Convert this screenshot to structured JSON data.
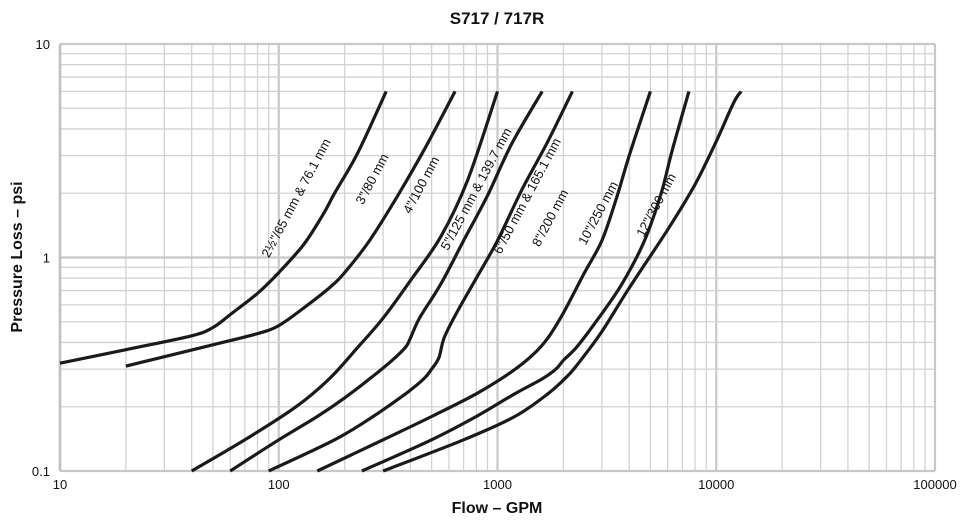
{
  "chart_data": {
    "type": "line",
    "title": "S717 / 717R",
    "xlabel": "Flow – GPM",
    "ylabel": "Pressure Loss – psi",
    "xscale": "log",
    "yscale": "log",
    "xlim": [
      10,
      100000
    ],
    "ylim": [
      0.1,
      10
    ],
    "grid": true,
    "legend": "none",
    "x_ticks": [
      "10",
      "100",
      "1000",
      "10000",
      "100000"
    ],
    "y_ticks": [
      "0.1",
      "1",
      "10"
    ],
    "series": [
      {
        "name": "2½\"/65 mm & 76.1 mm",
        "points": [
          [
            10,
            0.32
          ],
          [
            20,
            0.37
          ],
          [
            40,
            0.43
          ],
          [
            50,
            0.47
          ],
          [
            60,
            0.54
          ],
          [
            80,
            0.68
          ],
          [
            100,
            0.85
          ],
          [
            130,
            1.15
          ],
          [
            160,
            1.6
          ],
          [
            180,
            2.0
          ],
          [
            230,
            3.1
          ],
          [
            310,
            6.0
          ]
        ]
      },
      {
        "name": "3\"/80 mm",
        "points": [
          [
            20,
            0.31
          ],
          [
            50,
            0.39
          ],
          [
            80,
            0.44
          ],
          [
            100,
            0.48
          ],
          [
            130,
            0.58
          ],
          [
            170,
            0.72
          ],
          [
            200,
            0.85
          ],
          [
            260,
            1.2
          ],
          [
            350,
            1.95
          ],
          [
            470,
            3.3
          ],
          [
            640,
            6.0
          ]
        ]
      },
      {
        "name": "4\"/100 mm",
        "points": [
          [
            40,
            0.1
          ],
          [
            70,
            0.14
          ],
          [
            120,
            0.2
          ],
          [
            170,
            0.27
          ],
          [
            230,
            0.38
          ],
          [
            300,
            0.52
          ],
          [
            400,
            0.78
          ],
          [
            550,
            1.25
          ],
          [
            730,
            2.3
          ],
          [
            1000,
            6.0
          ]
        ]
      },
      {
        "name": "5\"/125 mm & 139.7 mm",
        "points": [
          [
            60,
            0.1
          ],
          [
            100,
            0.14
          ],
          [
            150,
            0.18
          ],
          [
            200,
            0.22
          ],
          [
            260,
            0.27
          ],
          [
            330,
            0.33
          ],
          [
            380,
            0.38
          ],
          [
            400,
            0.42
          ],
          [
            440,
            0.52
          ],
          [
            550,
            0.75
          ],
          [
            700,
            1.2
          ],
          [
            900,
            1.95
          ],
          [
            1160,
            3.4
          ],
          [
            1600,
            6.0
          ]
        ]
      },
      {
        "name": "6\"/50 mm & 165.1 mm",
        "points": [
          [
            90,
            0.1
          ],
          [
            180,
            0.14
          ],
          [
            270,
            0.18
          ],
          [
            380,
            0.23
          ],
          [
            460,
            0.27
          ],
          [
            500,
            0.3
          ],
          [
            540,
            0.34
          ],
          [
            570,
            0.42
          ],
          [
            650,
            0.55
          ],
          [
            800,
            0.8
          ],
          [
            1000,
            1.2
          ],
          [
            1300,
            2.1
          ],
          [
            1700,
            3.5
          ],
          [
            2200,
            6.0
          ]
        ]
      },
      {
        "name": "8\"/200 mm",
        "points": [
          [
            150,
            0.1
          ],
          [
            300,
            0.14
          ],
          [
            500,
            0.18
          ],
          [
            800,
            0.23
          ],
          [
            1150,
            0.29
          ],
          [
            1450,
            0.35
          ],
          [
            1700,
            0.42
          ],
          [
            2000,
            0.55
          ],
          [
            2500,
            0.85
          ],
          [
            3000,
            1.2
          ],
          [
            3500,
            1.9
          ],
          [
            4000,
            3.0
          ],
          [
            5000,
            6.0
          ]
        ]
      },
      {
        "name": "10\"/250 mm",
        "points": [
          [
            240,
            0.1
          ],
          [
            500,
            0.14
          ],
          [
            800,
            0.18
          ],
          [
            1200,
            0.23
          ],
          [
            1600,
            0.27
          ],
          [
            1850,
            0.3
          ],
          [
            2000,
            0.33
          ],
          [
            2300,
            0.38
          ],
          [
            2900,
            0.52
          ],
          [
            3700,
            0.75
          ],
          [
            4700,
            1.2
          ],
          [
            5600,
            2.0
          ],
          [
            6300,
            3.2
          ],
          [
            7500,
            6.0
          ]
        ]
      },
      {
        "name": "12\"/300 mm",
        "points": [
          [
            300,
            0.1
          ],
          [
            700,
            0.14
          ],
          [
            1200,
            0.18
          ],
          [
            1700,
            0.23
          ],
          [
            2100,
            0.28
          ],
          [
            2400,
            0.33
          ],
          [
            3000,
            0.45
          ],
          [
            4000,
            0.72
          ],
          [
            6000,
            1.35
          ],
          [
            8000,
            2.2
          ],
          [
            10000,
            3.5
          ],
          [
            12000,
            5.3
          ],
          [
            13000,
            6.0
          ]
        ]
      }
    ]
  }
}
